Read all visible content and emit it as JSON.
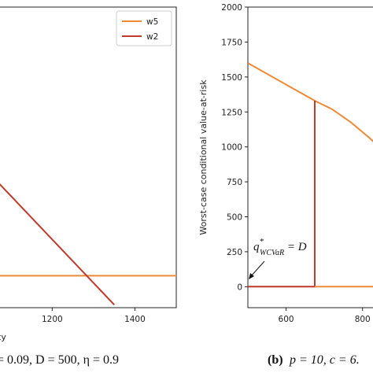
{
  "colors": {
    "w5": "#ee8a36",
    "w2": "#c0392b",
    "axis": "#222222"
  },
  "panel_a": {
    "xlabel_visible": "ty",
    "caption_visible": "= 0.09, D = 500, η = 0.9",
    "legend": [
      "w5",
      "w2"
    ]
  },
  "panel_b": {
    "caption_label": "(b)",
    "caption_text": "p = 10, c = 6.",
    "ylabel": "Worst-case conditional value-at-risk",
    "annotation": "q*WCVaR = D",
    "annotation_main": "q",
    "annotation_sup": "*",
    "annotation_sub": "WCVaR",
    "annotation_rest": " = D"
  },
  "chart_data": [
    {
      "type": "line",
      "panel": "a",
      "title": "",
      "xlabel": "ty",
      "ylabel": "",
      "xlim": [
        1070,
        1500
      ],
      "ylim": [
        -220,
        1850
      ],
      "x_ticks": [
        1200,
        1400
      ],
      "legend_position": "top-right",
      "series": [
        {
          "name": "w5",
          "x": [
            1070,
            1500
          ],
          "y": [
            0,
            0
          ]
        },
        {
          "name": "w2",
          "x": [
            1070,
            1350
          ],
          "y": [
            640,
            -200
          ]
        }
      ]
    },
    {
      "type": "line",
      "panel": "b",
      "title": "",
      "xlabel": "",
      "ylabel": "Worst-case conditional value-at-risk",
      "xlim": [
        500,
        850
      ],
      "ylim": [
        -150,
        2000
      ],
      "x_ticks": [
        600,
        800
      ],
      "y_ticks": [
        0,
        250,
        500,
        750,
        1000,
        1250,
        1500,
        1750,
        2000
      ],
      "series": [
        {
          "name": "",
          "color_key": "w5",
          "x": [
            500,
            675,
            720,
            770,
            820,
            850
          ],
          "y": [
            1600,
            1330,
            1270,
            1175,
            1060,
            980
          ]
        },
        {
          "name": "",
          "color_key": "w2",
          "x": [
            500,
            675,
            675
          ],
          "y": [
            0,
            0,
            1330
          ]
        },
        {
          "name": "",
          "color_key": "w5",
          "x": [
            675,
            850
          ],
          "y": [
            0,
            0
          ]
        }
      ]
    }
  ]
}
